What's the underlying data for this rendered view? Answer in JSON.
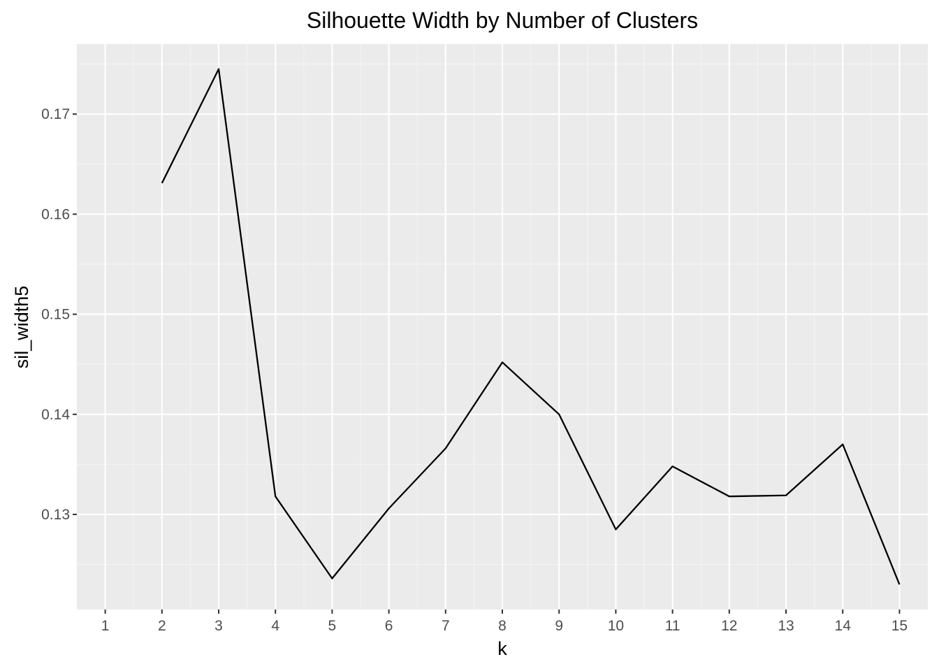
{
  "chart_data": {
    "type": "line",
    "title": "Silhouette Width by Number of Clusters",
    "xlabel": "k",
    "ylabel": "sil_width5",
    "x": [
      2,
      3,
      4,
      5,
      6,
      7,
      8,
      9,
      10,
      11,
      12,
      13,
      14,
      15
    ],
    "series": [
      {
        "values": [
          0.1631,
          0.1745,
          0.1318,
          0.1236,
          0.1306,
          0.1366,
          0.1452,
          0.14,
          0.1285,
          0.1348,
          0.1318,
          0.1319,
          0.137,
          0.123
        ]
      }
    ],
    "xlim": [
      0.5,
      15.5
    ],
    "ylim": [
      0.1205,
      0.177
    ],
    "x_ticks": [
      "1",
      "2",
      "3",
      "4",
      "5",
      "6",
      "7",
      "8",
      "9",
      "10",
      "11",
      "12",
      "13",
      "14",
      "15"
    ],
    "y_ticks": [
      "0.13",
      "0.14",
      "0.15",
      "0.16",
      "0.17"
    ],
    "grid": true,
    "colors": {
      "panel_background": "#ebebeb",
      "grid_major": "#ffffff",
      "grid_minor": "#f5f5f5",
      "line": "#000000",
      "tick_text": "#4d4d4d",
      "tick_mark": "#333333"
    }
  }
}
